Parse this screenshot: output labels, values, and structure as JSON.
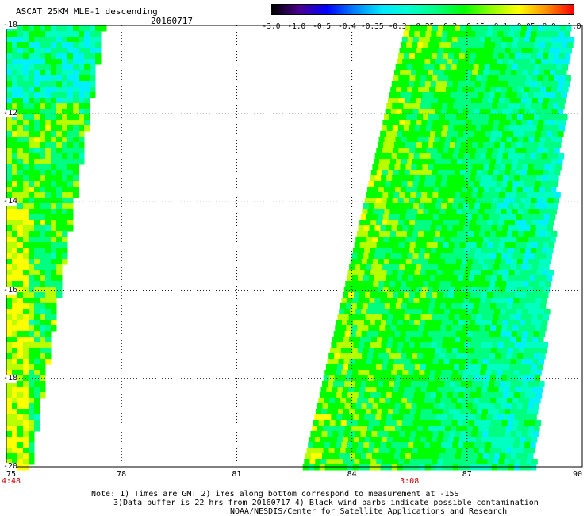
{
  "title": "ASCAT 25KM MLE-1 descending",
  "date": "20160717",
  "colorbar": {
    "labels": [
      "-3.0",
      "-1.0",
      "-0.5",
      "-0.4",
      "-0.35",
      "-0.3",
      "-0.25",
      "-0.2",
      "-0.15",
      "-0.1",
      "-0.05",
      "0.0",
      "1.0"
    ],
    "colors": [
      "#000000",
      "#4a0090",
      "#0000ff",
      "#0080ff",
      "#00e6ff",
      "#00ffd0",
      "#00ff80",
      "#00ff00",
      "#90ff00",
      "#ffff00",
      "#ff9000",
      "#ff0000"
    ]
  },
  "axes": {
    "lat_labels": [
      "-10",
      "-12",
      "-14",
      "-16",
      "-18",
      "-20"
    ],
    "lon_labels": [
      "75",
      "78",
      "81",
      "84",
      "87",
      "90"
    ],
    "lat_range": [
      -20,
      -10
    ],
    "lon_range": [
      75,
      90
    ],
    "grid": true
  },
  "times": [
    {
      "label": "4:48",
      "lon": 75
    },
    {
      "label": "3:08",
      "lon": 85.5
    }
  ],
  "notes": {
    "line1": "Note: 1) Times are GMT 2)Times along bottom correspond to measurement at -15S",
    "line2": "3)Data buffer is 22 hrs from 20160717 4) Black wind barbs indicate possible contamination",
    "line3": "NOAA/NESDIS/Center for Satellite Applications and Research"
  }
}
